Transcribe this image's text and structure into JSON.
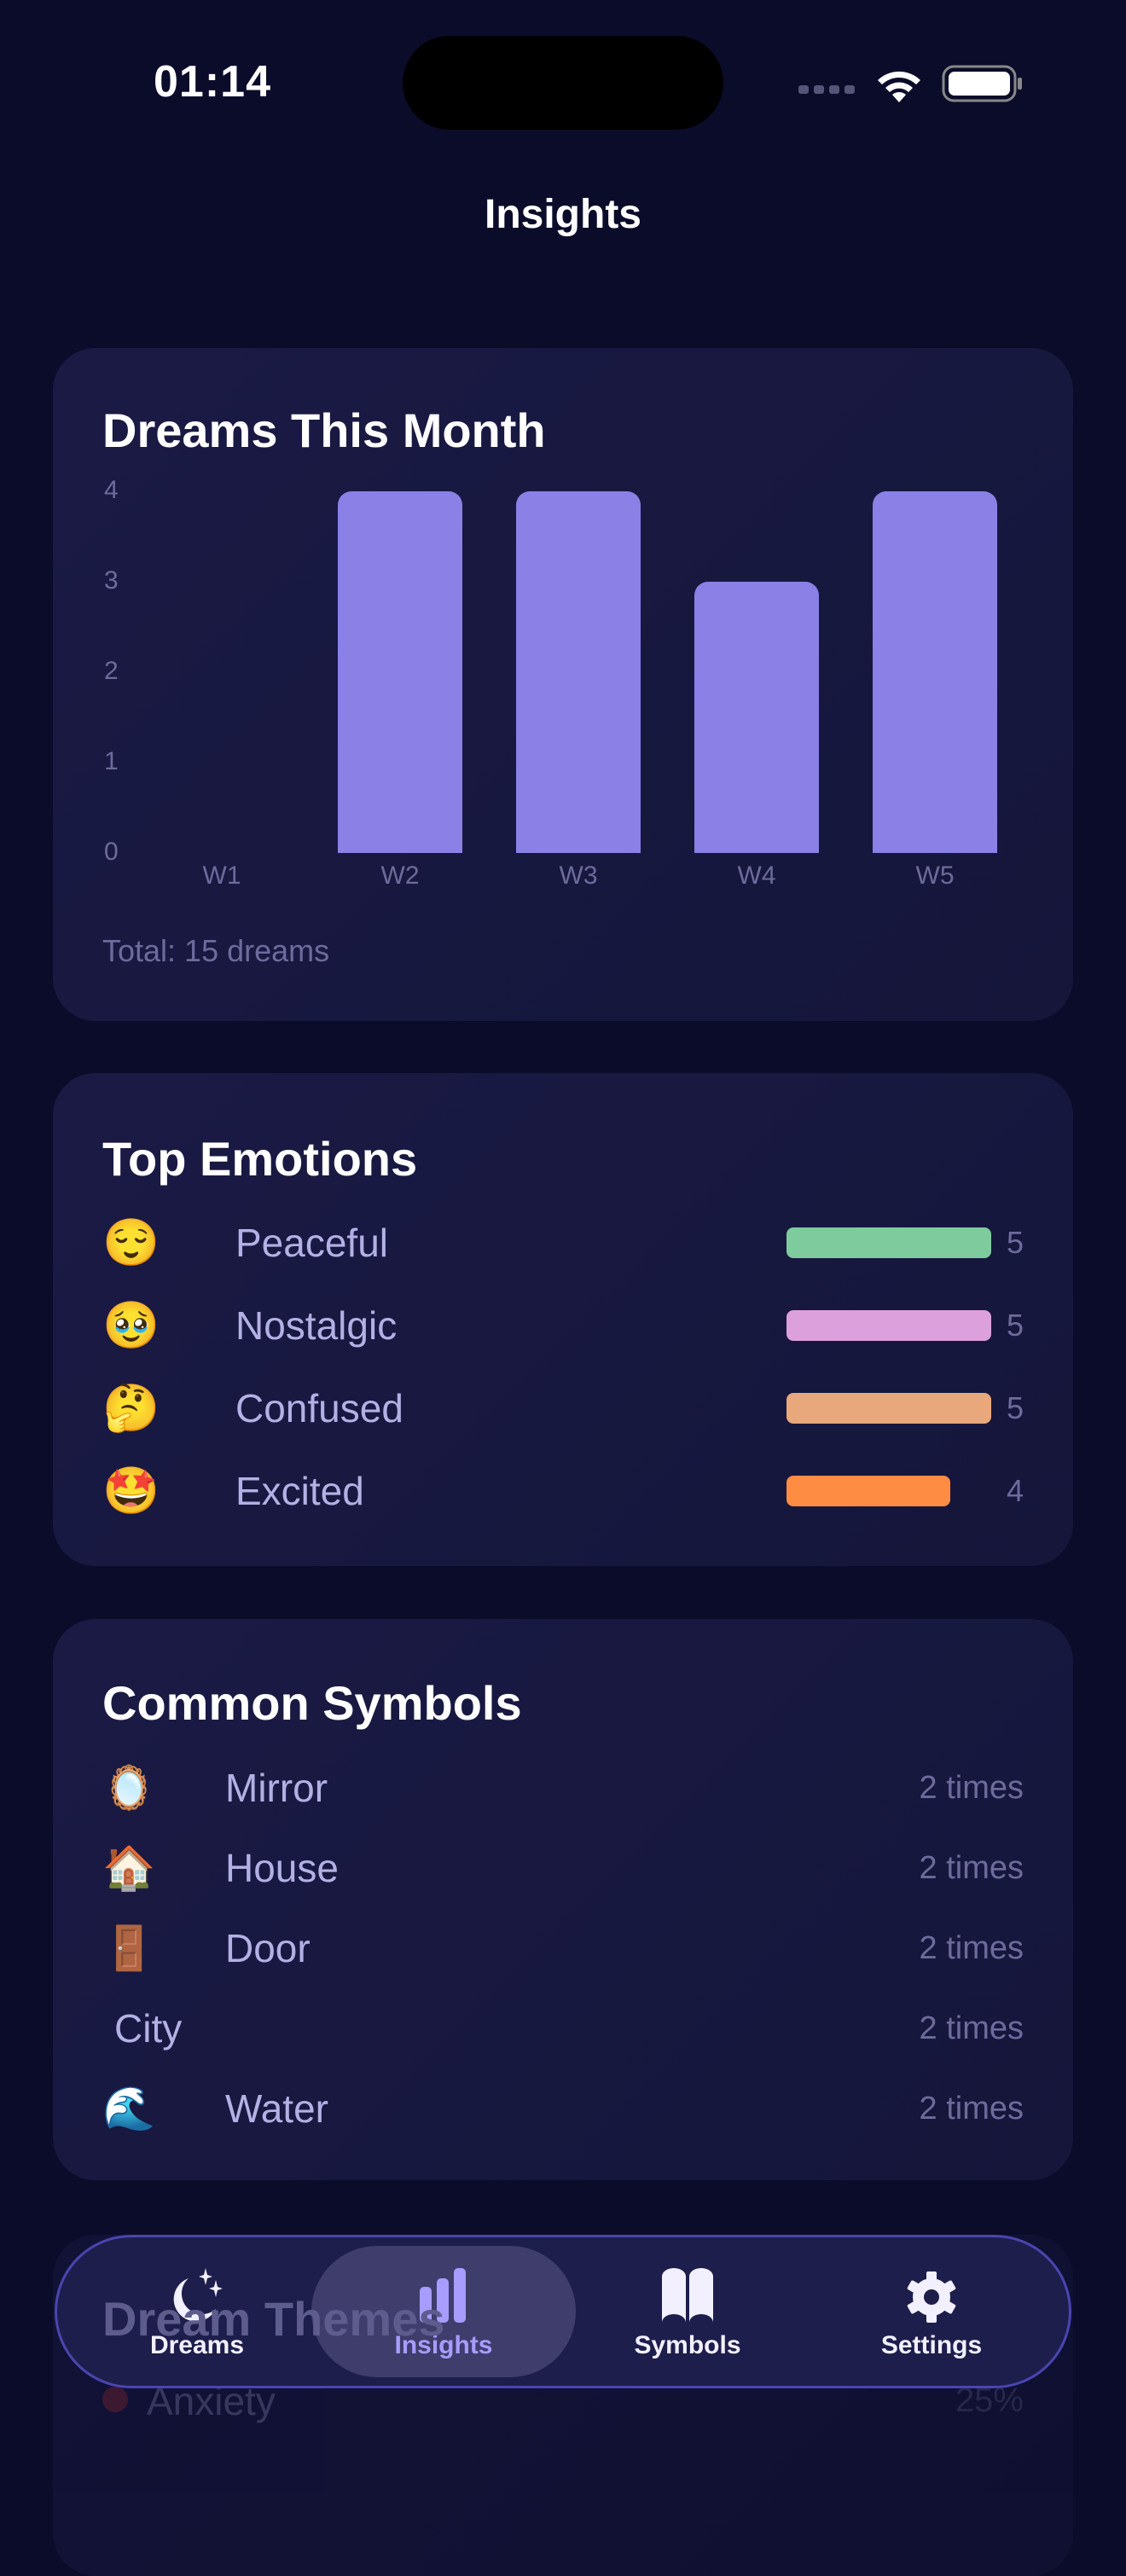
{
  "status_bar": {
    "time": "01:14"
  },
  "header": {
    "title": "Insights"
  },
  "colors": {
    "background": "#0b0c2a",
    "card": "#17173d",
    "accent": "#8b80e6",
    "tab_selected": "#a89cff"
  },
  "dreams_card": {
    "title": "Dreams This Month",
    "total": "Total: 15 dreams"
  },
  "chart_data": {
    "type": "bar",
    "title": "Dreams This Month",
    "categories": [
      "W1",
      "W2",
      "W3",
      "W4",
      "W5"
    ],
    "values": [
      0,
      4,
      4,
      3,
      4
    ],
    "y_ticks": [
      "0",
      "1",
      "2",
      "3",
      "4"
    ],
    "ylim": [
      0,
      4
    ],
    "grid": false,
    "color": "#8b80e6"
  },
  "emotions_card": {
    "title": "Top Emotions",
    "items": [
      {
        "emoji": "😌",
        "label": "Peaceful",
        "count": "5",
        "value": 5,
        "color": "#7ecb9e"
      },
      {
        "emoji": "🥹",
        "label": "Nostalgic",
        "count": "5",
        "value": 5,
        "color": "#dca0dc"
      },
      {
        "emoji": "🤔",
        "label": "Confused",
        "count": "5",
        "value": 5,
        "color": "#e8a87c"
      },
      {
        "emoji": "🤩",
        "label": "Excited",
        "count": "4",
        "value": 4,
        "color": "#ff8c42"
      }
    ]
  },
  "symbols_card": {
    "title": "Common Symbols",
    "items": [
      {
        "emoji": "🪞",
        "label": "Mirror",
        "count": "2 times"
      },
      {
        "emoji": "🏠",
        "label": "House",
        "count": "2 times"
      },
      {
        "emoji": "🚪",
        "label": "Door",
        "count": "2 times"
      },
      {
        "emoji": "",
        "label": "City",
        "count": "2 times"
      },
      {
        "emoji": "🌊",
        "label": "Water",
        "count": "2 times"
      }
    ]
  },
  "themes_card": {
    "title": "Dream Themes",
    "items": [
      {
        "label": "Anxiety",
        "percent": "25%",
        "color": "#7a2a3a"
      }
    ]
  },
  "tabbar": {
    "tabs": [
      {
        "label": "Dreams",
        "icon": "moon-stars-icon"
      },
      {
        "label": "Insights",
        "icon": "chart-bar-icon",
        "selected": true
      },
      {
        "label": "Symbols",
        "icon": "book-icon"
      },
      {
        "label": "Settings",
        "icon": "gear-icon"
      }
    ]
  }
}
